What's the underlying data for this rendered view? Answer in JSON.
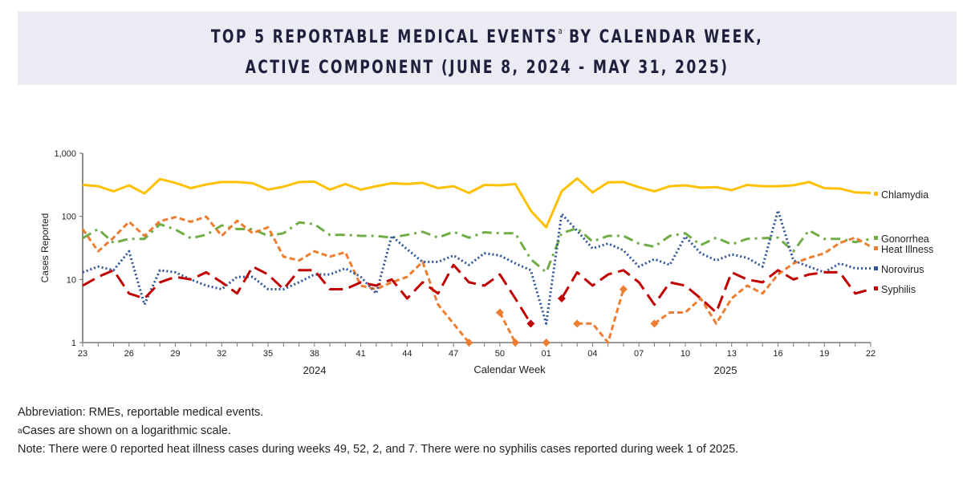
{
  "title": {
    "line1": "TOP 5 REPORTABLE MEDICAL EVENTS",
    "superscript": "a",
    "line1_end": " BY CALENDAR WEEK,",
    "line2": "ACTIVE COMPONENT (JUNE 8, 2024 - MAY 31, 2025)"
  },
  "notes": {
    "abbreviation": "Abbreviation: RMEs, reportable medical events.",
    "footnote_mark": "a",
    "footnote": "Cases are shown on a logarithmic scale.",
    "note": "Note: There were 0 reported heat illness cases during weeks 49, 52, 2, and 7. There were no syphilis cases reported during week 1 of 2025."
  },
  "chart_data": {
    "type": "line",
    "xlabel": "Calendar Week",
    "ylabel": "Cases Reported",
    "y_scale": "log",
    "ylim": [
      1,
      1000
    ],
    "y_ticks": [
      "1",
      "10",
      "100",
      "1,000"
    ],
    "year_labels": [
      "2024",
      "2025"
    ],
    "grid": false,
    "legend_placement": "right, at line ends",
    "x": [
      "23",
      "24",
      "25",
      "26",
      "27",
      "28",
      "29",
      "30",
      "31",
      "32",
      "33",
      "34",
      "35",
      "36",
      "37",
      "38",
      "39",
      "40",
      "41",
      "42",
      "43",
      "44",
      "45",
      "46",
      "47",
      "48",
      "49",
      "50",
      "51",
      "52",
      "01",
      "02",
      "03",
      "04",
      "05",
      "06",
      "07",
      "08",
      "09",
      "10",
      "11",
      "12",
      "13",
      "14",
      "15",
      "16",
      "17",
      "18",
      "19",
      "20",
      "21",
      "22"
    ],
    "x_tick_labels": [
      "23",
      "26",
      "29",
      "32",
      "35",
      "38",
      "41",
      "44",
      "47",
      "50",
      "01",
      "04",
      "07",
      "10",
      "13",
      "16",
      "19",
      "22"
    ],
    "series": [
      {
        "name": "Chlamydia",
        "color": "#ffc000",
        "values": [
          316,
          300,
          250,
          310,
          230,
          390,
          340,
          280,
          320,
          350,
          350,
          335,
          265,
          295,
          350,
          355,
          265,
          325,
          265,
          300,
          335,
          325,
          340,
          280,
          300,
          235,
          315,
          310,
          325,
          123,
          67,
          250,
          400,
          240,
          345,
          350,
          290,
          250,
          300,
          310,
          285,
          290,
          260,
          315,
          300,
          300,
          310,
          350,
          280,
          275,
          240,
          235
        ]
      },
      {
        "name": "Gonorrhea",
        "color": "#70ad47",
        "values": [
          45,
          63,
          38,
          44,
          44,
          75,
          62,
          45,
          51,
          72,
          63,
          63,
          49,
          54,
          80,
          75,
          51,
          51,
          49,
          49,
          46,
          51,
          57,
          46,
          57,
          46,
          56,
          54,
          54,
          21,
          13,
          54,
          65,
          40,
          49,
          49,
          37,
          33,
          49,
          54,
          35,
          46,
          36,
          44,
          45,
          46,
          28,
          60,
          44,
          44,
          39,
          44
        ]
      },
      {
        "name": "Heat Illness",
        "color": "#ed7d31",
        "values": [
          63,
          28,
          46,
          82,
          49,
          84,
          97,
          82,
          99,
          49,
          85,
          54,
          67,
          23,
          20,
          28,
          23,
          27,
          8,
          7,
          9,
          11,
          19,
          4,
          2,
          1,
          null,
          3,
          1,
          null,
          1,
          null,
          2,
          2,
          1,
          7,
          null,
          2,
          3,
          3,
          5,
          2,
          5,
          8,
          6,
          12,
          18,
          22,
          26,
          38,
          46,
          33
        ]
      },
      {
        "name": "Norovirus",
        "color": "#2f5597",
        "values": [
          13,
          16,
          14,
          28,
          4,
          14,
          13,
          10,
          8,
          7,
          11,
          11,
          7,
          7,
          9,
          12,
          12,
          15,
          11,
          6,
          49,
          30,
          19,
          19,
          24,
          17,
          26,
          24,
          18,
          14,
          2,
          109,
          59,
          31,
          37,
          29,
          16,
          21,
          17,
          48,
          26,
          20,
          25,
          22,
          16,
          124,
          20,
          16,
          13,
          18,
          15,
          15
        ]
      },
      {
        "name": "Syphilis",
        "color": "#c00000",
        "values": [
          8,
          11,
          14,
          6,
          5,
          9,
          11,
          10,
          13,
          9,
          6,
          16,
          12,
          7,
          14,
          14,
          7,
          7,
          9,
          8,
          10,
          5,
          9,
          6,
          17,
          9,
          8,
          12,
          5,
          2,
          null,
          5,
          13,
          8,
          12,
          14,
          9,
          4,
          9,
          8,
          5,
          3,
          13,
          10,
          9,
          14,
          10,
          12,
          13,
          13,
          6,
          7
        ]
      }
    ]
  }
}
